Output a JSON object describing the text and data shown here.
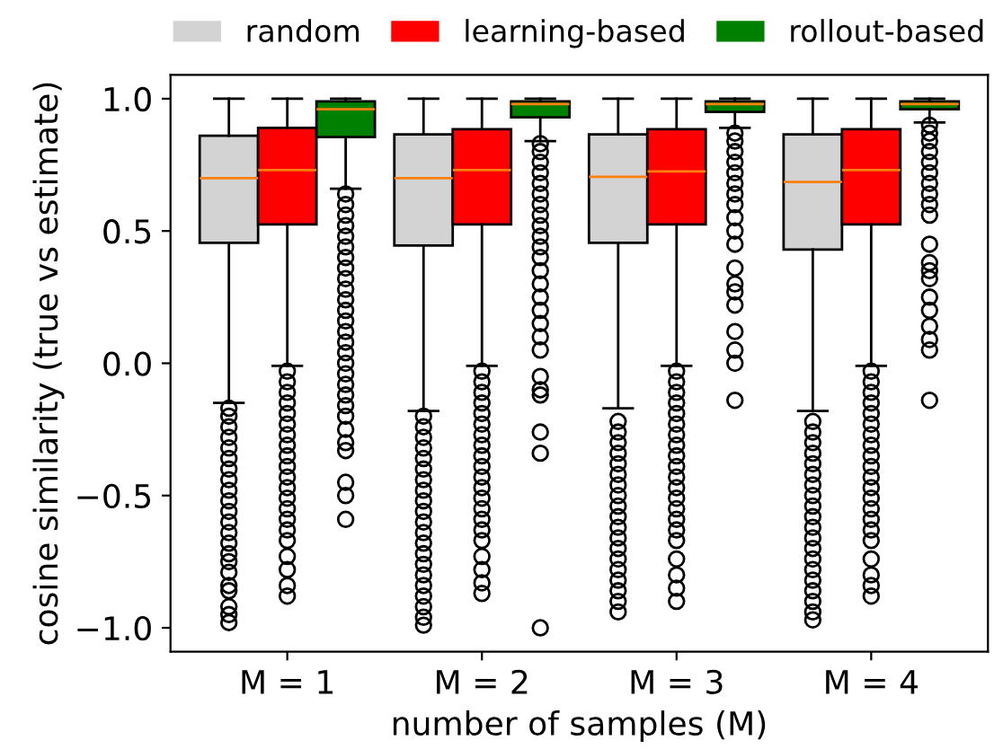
{
  "chart_data": {
    "type": "box",
    "xlabel": "number of samples (M)",
    "ylabel": "cosine similarity (true vs estimate)",
    "categories": [
      "M = 1",
      "M = 2",
      "M = 3",
      "M = 4"
    ],
    "ylim": [
      -1.09,
      1.09
    ],
    "yticks": [
      {
        "value": -1.0,
        "label": "−1.0"
      },
      {
        "value": -0.5,
        "label": "−0.5"
      },
      {
        "value": 0.0,
        "label": "0.0"
      },
      {
        "value": 0.5,
        "label": "0.5"
      },
      {
        "value": 1.0,
        "label": "1.0"
      }
    ],
    "legend": "top",
    "grid": false,
    "marker": "circle",
    "series": [
      {
        "name": "random",
        "color": "#d3d3d3",
        "boxes": [
          {
            "low": -0.15,
            "q1": 0.455,
            "median": 0.7,
            "q3": 0.86,
            "high": 1.0,
            "outliers": [
              -0.17,
              -0.2,
              -0.24,
              -0.28,
              -0.32,
              -0.36,
              -0.4,
              -0.44,
              -0.48,
              -0.52,
              -0.56,
              -0.6,
              -0.64,
              -0.68,
              -0.72,
              -0.75,
              -0.79,
              -0.84,
              -0.86,
              -0.92,
              -0.95,
              -0.98
            ]
          },
          {
            "low": -0.18,
            "q1": 0.445,
            "median": 0.7,
            "q3": 0.865,
            "high": 1.0,
            "outliers": [
              -0.2,
              -0.24,
              -0.28,
              -0.32,
              -0.36,
              -0.4,
              -0.44,
              -0.48,
              -0.52,
              -0.56,
              -0.6,
              -0.64,
              -0.68,
              -0.72,
              -0.76,
              -0.8,
              -0.84,
              -0.88,
              -0.92,
              -0.96,
              -0.99
            ]
          },
          {
            "low": -0.17,
            "q1": 0.455,
            "median": 0.705,
            "q3": 0.865,
            "high": 1.0,
            "outliers": [
              -0.22,
              -0.26,
              -0.3,
              -0.34,
              -0.38,
              -0.42,
              -0.46,
              -0.5,
              -0.54,
              -0.58,
              -0.62,
              -0.66,
              -0.7,
              -0.74,
              -0.78,
              -0.82,
              -0.86,
              -0.9,
              -0.94
            ]
          },
          {
            "low": -0.18,
            "q1": 0.43,
            "median": 0.685,
            "q3": 0.865,
            "high": 1.0,
            "outliers": [
              -0.22,
              -0.26,
              -0.3,
              -0.34,
              -0.38,
              -0.42,
              -0.46,
              -0.5,
              -0.54,
              -0.58,
              -0.62,
              -0.66,
              -0.7,
              -0.74,
              -0.78,
              -0.82,
              -0.86,
              -0.9,
              -0.94,
              -0.97
            ]
          }
        ]
      },
      {
        "name": "learning-based",
        "color": "#ff0000",
        "boxes": [
          {
            "low": -0.01,
            "q1": 0.525,
            "median": 0.73,
            "q3": 0.89,
            "high": 1.0,
            "outliers": [
              -0.03,
              -0.07,
              -0.11,
              -0.15,
              -0.19,
              -0.23,
              -0.27,
              -0.31,
              -0.35,
              -0.39,
              -0.43,
              -0.47,
              -0.51,
              -0.55,
              -0.59,
              -0.63,
              -0.67,
              -0.73,
              -0.78,
              -0.84,
              -0.88
            ]
          },
          {
            "low": -0.01,
            "q1": 0.525,
            "median": 0.73,
            "q3": 0.885,
            "high": 1.0,
            "outliers": [
              -0.03,
              -0.07,
              -0.11,
              -0.15,
              -0.19,
              -0.23,
              -0.27,
              -0.31,
              -0.35,
              -0.39,
              -0.43,
              -0.47,
              -0.51,
              -0.55,
              -0.59,
              -0.63,
              -0.67,
              -0.73,
              -0.78,
              -0.83,
              -0.87
            ]
          },
          {
            "low": -0.01,
            "q1": 0.525,
            "median": 0.725,
            "q3": 0.885,
            "high": 1.0,
            "outliers": [
              -0.03,
              -0.07,
              -0.11,
              -0.15,
              -0.19,
              -0.23,
              -0.27,
              -0.31,
              -0.35,
              -0.39,
              -0.43,
              -0.47,
              -0.51,
              -0.55,
              -0.59,
              -0.63,
              -0.67,
              -0.74,
              -0.8,
              -0.85,
              -0.9
            ]
          },
          {
            "low": -0.01,
            "q1": 0.525,
            "median": 0.73,
            "q3": 0.885,
            "high": 1.0,
            "outliers": [
              -0.03,
              -0.07,
              -0.11,
              -0.15,
              -0.19,
              -0.23,
              -0.27,
              -0.31,
              -0.35,
              -0.39,
              -0.43,
              -0.47,
              -0.51,
              -0.55,
              -0.59,
              -0.63,
              -0.67,
              -0.74,
              -0.8,
              -0.84,
              -0.88
            ]
          }
        ]
      },
      {
        "name": "rollout-based",
        "color": "#008000",
        "boxes": [
          {
            "low": 0.66,
            "q1": 0.855,
            "median": 0.96,
            "q3": 0.99,
            "high": 1.0,
            "outliers": [
              0.64,
              0.6,
              0.56,
              0.52,
              0.48,
              0.44,
              0.4,
              0.36,
              0.32,
              0.28,
              0.24,
              0.2,
              0.16,
              0.12,
              0.08,
              0.04,
              0.0,
              -0.04,
              -0.08,
              -0.12,
              -0.16,
              -0.2,
              -0.25,
              -0.3,
              -0.33,
              -0.45,
              -0.5,
              -0.59
            ]
          },
          {
            "low": 0.84,
            "q1": 0.93,
            "median": 0.98,
            "q3": 0.99,
            "high": 1.0,
            "outliers": [
              0.83,
              0.8,
              0.76,
              0.72,
              0.68,
              0.64,
              0.6,
              0.56,
              0.52,
              0.48,
              0.44,
              0.4,
              0.35,
              0.3,
              0.25,
              0.2,
              0.15,
              0.1,
              0.05,
              -0.05,
              -0.1,
              -0.12,
              -0.26,
              -0.34,
              -1.0
            ]
          },
          {
            "low": 0.89,
            "q1": 0.95,
            "median": 0.98,
            "q3": 0.99,
            "high": 1.0,
            "outliers": [
              0.87,
              0.84,
              0.8,
              0.76,
              0.72,
              0.68,
              0.64,
              0.6,
              0.55,
              0.5,
              0.45,
              0.36,
              0.3,
              0.27,
              0.22,
              0.12,
              0.05,
              0.0,
              -0.14
            ]
          },
          {
            "low": 0.91,
            "q1": 0.96,
            "median": 0.98,
            "q3": 0.99,
            "high": 1.0,
            "outliers": [
              0.9,
              0.87,
              0.84,
              0.8,
              0.76,
              0.72,
              0.68,
              0.64,
              0.6,
              0.56,
              0.45,
              0.38,
              0.35,
              0.32,
              0.25,
              0.2,
              0.14,
              0.09,
              0.05,
              -0.14
            ]
          }
        ]
      }
    ]
  }
}
